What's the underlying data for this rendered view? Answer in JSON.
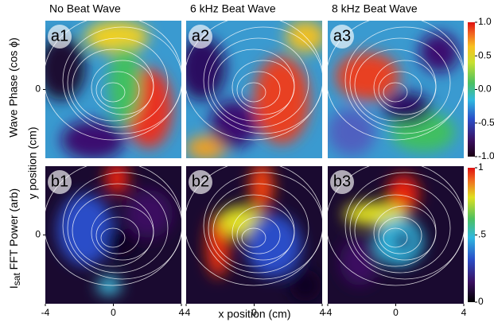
{
  "columns": [
    "No Beat Wave",
    "6 kHz Beat Wave",
    "8 kHz Beat Wave"
  ],
  "x_axis": {
    "label": "x position (cm)",
    "xlim": [
      -4,
      4
    ],
    "xticks": [
      -4,
      0,
      4
    ]
  },
  "y_axis": {
    "label": "y position (cm)",
    "ylim": [
      -4,
      4
    ]
  },
  "rows": [
    {
      "ylabel": "Wave Phase (cos ϕ)",
      "panels": [
        "a1",
        "a2",
        "a3"
      ],
      "yticks": [
        0
      ],
      "colorbar": {
        "lim": [
          -1,
          1
        ],
        "ticks": [
          {
            "value": 1,
            "label": "1.0"
          },
          {
            "value": 0.5,
            "label": "0.5"
          },
          {
            "value": 0,
            "label": "0.0"
          },
          {
            "value": -0.5,
            "label": "-0.5"
          },
          {
            "value": -1,
            "label": "-1.0"
          }
        ]
      }
    },
    {
      "ylabel_prefix": "I",
      "ylabel_sub": "sat",
      "ylabel": "FFT Power (arb)",
      "panels": [
        "b1",
        "b2",
        "b3"
      ],
      "yticks": [
        0
      ],
      "colorbar": {
        "lim": [
          0,
          1
        ],
        "ticks": [
          1,
          {
            "value": 0.5,
            "label": ".5"
          },
          0
        ]
      }
    }
  ]
}
